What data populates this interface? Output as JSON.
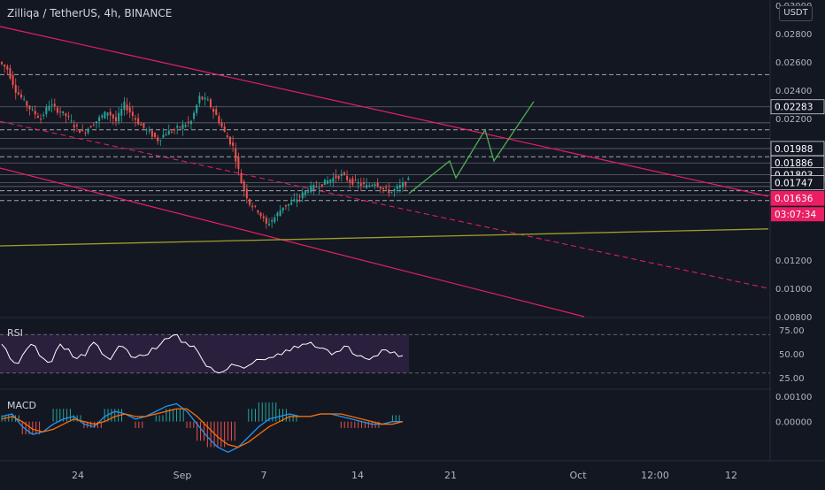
{
  "title": "Zilliqa / TetherUS, 4h, BINANCE",
  "currency_button": "USDT",
  "colors": {
    "background": "#131722",
    "up_candle": "#26a69a",
    "down_candle": "#ef5350",
    "trendline": "#e91e63",
    "projection": "#4caf50",
    "support": "#9e9e2a",
    "rsi_line": "#ffffff",
    "rsi_band": "#2a1f3d",
    "macd_line": "#2196f3",
    "signal_line": "#ff6d00",
    "price_tag": "#e91e63"
  },
  "chart_data": [
    {
      "type": "line",
      "name": "price",
      "y_scale": "linear",
      "ylim": [
        0.008,
        0.03
      ],
      "y_ticks": [
        "0.03000",
        "0.02800",
        "0.02600",
        "0.02400",
        "0.02200",
        "0.01200",
        "0.01000",
        "0.00800"
      ],
      "x_ticks": [
        "24",
        "Sep",
        "7",
        "14",
        "21",
        "Oct",
        "12:00",
        "12"
      ],
      "price_labels": [
        {
          "text": "0.02283",
          "value": 0.02283,
          "highlight": false
        },
        {
          "text": "0.01988",
          "value": 0.01988,
          "highlight": false
        },
        {
          "text": "0.01886",
          "value": 0.01886,
          "highlight": false
        },
        {
          "text": "0.01803",
          "value": 0.01803,
          "highlight": false
        },
        {
          "text": "0.01747",
          "value": 0.01747,
          "highlight": false
        },
        {
          "text": "0.01636",
          "value": 0.01636,
          "highlight": true
        }
      ],
      "countdown": "03:07:34",
      "horizontal_levels": [
        0.0251,
        0.02283,
        0.0217,
        0.0212,
        0.0206,
        0.01988,
        0.0193,
        0.01886,
        0.01803,
        0.01747,
        0.0172,
        0.0169,
        0.0166,
        0.0162
      ],
      "dashed_levels": [
        0.0251,
        0.0212,
        0.0193,
        0.0169,
        0.0162
      ],
      "close_series": [
        0.0255,
        0.024,
        0.0232,
        0.0225,
        0.022,
        0.023,
        0.0226,
        0.0222,
        0.0215,
        0.021,
        0.0215,
        0.022,
        0.0225,
        0.0218,
        0.023,
        0.0222,
        0.0215,
        0.021,
        0.0205,
        0.021,
        0.0212,
        0.0215,
        0.0218,
        0.0235,
        0.0232,
        0.0222,
        0.021,
        0.02,
        0.0175,
        0.016,
        0.0155,
        0.0145,
        0.015,
        0.0158,
        0.016,
        0.0165,
        0.017,
        0.0172,
        0.0175,
        0.0178,
        0.018,
        0.0176,
        0.0174,
        0.0172,
        0.0175,
        0.017,
        0.0168,
        0.0172,
        0.0176
      ],
      "projection_path": [
        [
          0.0167,
          0
        ],
        [
          0.019,
          1
        ],
        [
          0.0178,
          2
        ],
        [
          0.0212,
          3
        ],
        [
          0.019,
          4
        ],
        [
          0.0232,
          5
        ]
      ]
    },
    {
      "type": "line",
      "name": "RSI",
      "ylim": [
        15,
        85
      ],
      "y_ticks": [
        "75.00",
        "50.00",
        "25.00"
      ],
      "bands": [
        70,
        30
      ],
      "values": [
        60,
        45,
        40,
        55,
        58,
        45,
        42,
        60,
        55,
        45,
        48,
        62,
        50,
        44,
        58,
        54,
        46,
        48,
        56,
        60,
        66,
        70,
        62,
        58,
        44,
        36,
        30,
        34,
        38,
        35,
        40,
        44,
        46,
        50,
        54,
        58,
        60,
        62,
        56,
        54,
        52,
        58,
        50,
        48,
        44,
        48,
        54,
        52,
        48
      ]
    },
    {
      "type": "bar",
      "name": "MACD",
      "ylim": [
        -0.0015,
        0.0012
      ],
      "y_ticks": [
        "0.00100",
        "0.00000"
      ],
      "macd": [
        0.0002,
        0.0003,
        -0.0002,
        -0.0005,
        -0.0004,
        -0.0001,
        0.0001,
        0.0002,
        -0.0001,
        -0.0002,
        0.0002,
        0.0004,
        0.0003,
        0.0001,
        0.0002,
        0.0004,
        0.0006,
        0.0007,
        0.0004,
        -0.0001,
        -0.0006,
        -0.001,
        -0.0012,
        -0.001,
        -0.0006,
        -0.0002,
        0.0001,
        0.0002,
        0.0003,
        0.0002,
        0.0002,
        0.0003,
        0.0003,
        0.0002,
        0.0001,
        0.0,
        -0.0001,
        -0.0001,
        0.0,
        0.0
      ],
      "signal": [
        0.0001,
        0.0002,
        0.0,
        -0.0003,
        -0.0004,
        -0.0003,
        -0.0001,
        0.0001,
        0.0,
        -0.0001,
        0.0,
        0.0002,
        0.0003,
        0.0002,
        0.0002,
        0.0003,
        0.0004,
        0.0005,
        0.0005,
        0.0002,
        -0.0002,
        -0.0006,
        -0.0009,
        -0.001,
        -0.0008,
        -0.0005,
        -0.0002,
        0.0,
        0.0002,
        0.0002,
        0.0002,
        0.0003,
        0.0003,
        0.0003,
        0.0002,
        0.0001,
        0.0,
        -0.0001,
        -0.0001,
        0.0
      ]
    }
  ],
  "panes": {
    "rsi_label": "RSI",
    "macd_label": "MACD"
  }
}
